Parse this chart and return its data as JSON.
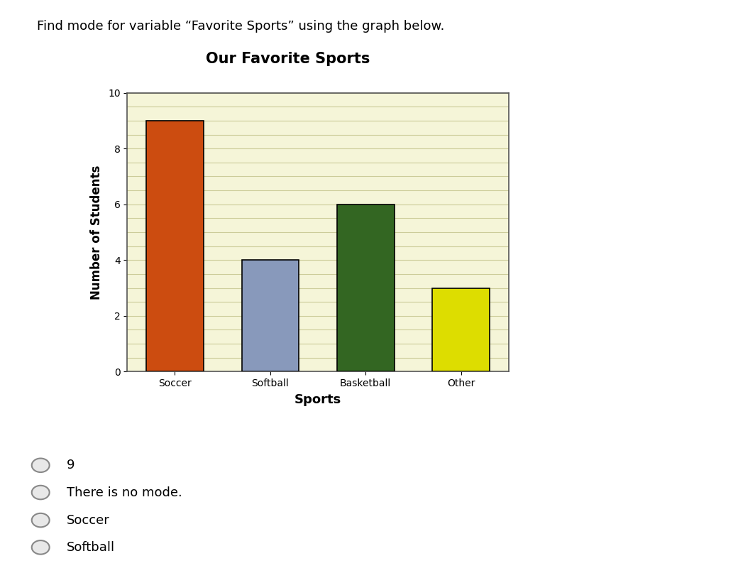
{
  "question_text": "Find mode for variable “Favorite Sports” using the graph below.",
  "chart_title": "Our Favorite Sports",
  "xlabel": "Sports",
  "ylabel": "Number of Students",
  "categories": [
    "Soccer",
    "Softball",
    "Basketball",
    "Other"
  ],
  "values": [
    9,
    4,
    6,
    3
  ],
  "bar_colors": [
    "#cc4c10",
    "#8899bb",
    "#336622",
    "#dddd00"
  ],
  "bar_edgecolor": "#000000",
  "ylim": [
    0,
    10
  ],
  "yticks": [
    0,
    2,
    4,
    6,
    8,
    10
  ],
  "chart_bg_color": "#aacce0",
  "plot_bg_color": "#f5f5d8",
  "grid_color": "#cccc99",
  "options": [
    "9",
    "There is no mode.",
    "Soccer",
    "Softball"
  ],
  "question_fontsize": 13,
  "title_fontsize": 15,
  "axis_label_fontsize": 12,
  "tick_fontsize": 10,
  "option_fontsize": 13,
  "bar_width": 0.6
}
